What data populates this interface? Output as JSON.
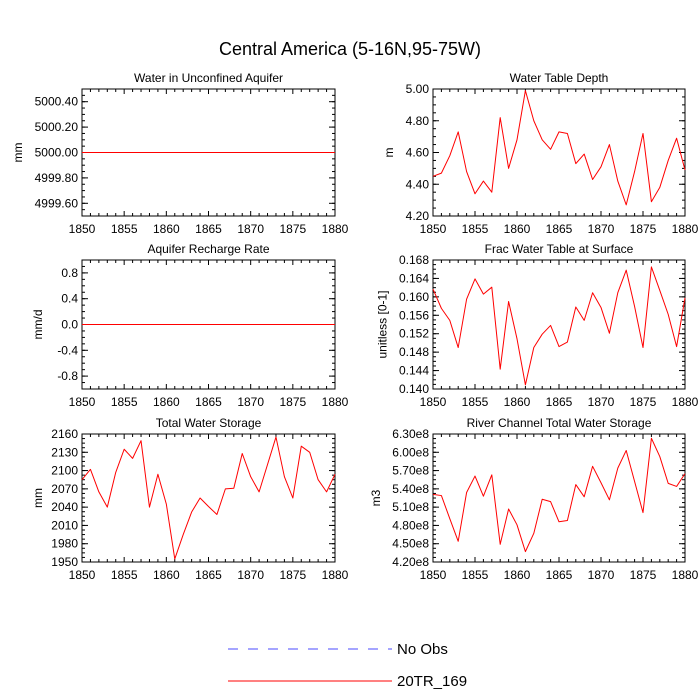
{
  "title": "Central America (5-16N,95-75W)",
  "colors": {
    "model": "#ff0000",
    "obs": "#4b4bff",
    "axis": "#000000"
  },
  "legend": [
    {
      "label": "No Obs",
      "style": "dashed",
      "color": "#4b4bff"
    },
    {
      "label": "20TR_169",
      "style": "solid",
      "color": "#ff0000"
    }
  ],
  "chart_data": [
    {
      "type": "line",
      "title": "Water in Unconfined Aquifer",
      "ylabel": "mm",
      "xlim": [
        1850,
        1880
      ],
      "ylim": [
        4999.5,
        5000.5
      ],
      "xticks": [
        1850,
        1855,
        1860,
        1865,
        1870,
        1875,
        1880
      ],
      "xtick_labels": [
        "1850",
        "1855",
        "1860",
        "1865",
        "1870",
        "1875",
        "1880"
      ],
      "yticks": [
        4999.6,
        4999.8,
        5000.0,
        5000.2,
        5000.4
      ],
      "ytick_labels": [
        "4999.60",
        "4999.80",
        "5000.00",
        "5000.20",
        "5000.40"
      ],
      "series": [
        {
          "name": "20TR_169",
          "x": [
            1850,
            1880
          ],
          "values": [
            5000.0,
            5000.0
          ]
        }
      ]
    },
    {
      "type": "line",
      "title": "Water Table Depth",
      "ylabel": "m",
      "xlim": [
        1850,
        1880
      ],
      "ylim": [
        4.2,
        5.0
      ],
      "xticks": [
        1850,
        1855,
        1860,
        1865,
        1870,
        1875,
        1880
      ],
      "xtick_labels": [
        "1850",
        "1855",
        "1860",
        "1865",
        "1870",
        "1875",
        "1880"
      ],
      "yticks": [
        4.2,
        4.4,
        4.6,
        4.8,
        5.0
      ],
      "ytick_labels": [
        "4.20",
        "4.40",
        "4.60",
        "4.80",
        "5.00"
      ],
      "series": [
        {
          "name": "20TR_169",
          "x_start": 1850,
          "x_step": 1,
          "values": [
            4.45,
            4.47,
            4.58,
            4.73,
            4.48,
            4.34,
            4.42,
            4.35,
            4.82,
            4.5,
            4.68,
            4.99,
            4.8,
            4.68,
            4.62,
            4.73,
            4.72,
            4.53,
            4.59,
            4.43,
            4.51,
            4.65,
            4.42,
            4.27,
            4.48,
            4.72,
            4.29,
            4.38,
            4.55,
            4.69,
            4.49
          ]
        }
      ]
    },
    {
      "type": "line",
      "title": "Aquifer Recharge Rate",
      "ylabel": "mm/d",
      "xlim": [
        1850,
        1880
      ],
      "ylim": [
        -1.0,
        1.0
      ],
      "xticks": [
        1850,
        1855,
        1860,
        1865,
        1870,
        1875,
        1880
      ],
      "xtick_labels": [
        "1850",
        "1855",
        "1860",
        "1865",
        "1870",
        "1875",
        "1880"
      ],
      "yticks": [
        -0.8,
        -0.4,
        0.0,
        0.4,
        0.8
      ],
      "ytick_labels": [
        "-0.8",
        "-0.4",
        "0.0",
        "0.4",
        "0.8"
      ],
      "series": [
        {
          "name": "20TR_169",
          "x": [
            1850,
            1880
          ],
          "values": [
            0.0,
            0.0
          ]
        }
      ]
    },
    {
      "type": "line",
      "title": "Frac Water Table at Surface",
      "ylabel": "unitless [0-1]",
      "xlim": [
        1850,
        1880
      ],
      "ylim": [
        0.14,
        0.168
      ],
      "xticks": [
        1850,
        1855,
        1860,
        1865,
        1870,
        1875,
        1880
      ],
      "xtick_labels": [
        "1850",
        "1855",
        "1860",
        "1865",
        "1870",
        "1875",
        "1880"
      ],
      "yticks": [
        0.14,
        0.144,
        0.148,
        0.152,
        0.156,
        0.16,
        0.164,
        0.168
      ],
      "ytick_labels": [
        "0.140",
        "0.144",
        "0.148",
        "0.152",
        "0.156",
        "0.160",
        "0.164",
        "0.168"
      ],
      "series": [
        {
          "name": "20TR_169",
          "x_start": 1850,
          "x_step": 1,
          "values": [
            0.1617,
            0.1575,
            0.1549,
            0.149,
            0.1595,
            0.1639,
            0.1606,
            0.1621,
            0.1443,
            0.159,
            0.1509,
            0.1409,
            0.149,
            0.1519,
            0.1538,
            0.1492,
            0.1502,
            0.1578,
            0.1549,
            0.1609,
            0.1577,
            0.1521,
            0.1609,
            0.1658,
            0.1579,
            0.149,
            0.1665,
            0.1614,
            0.1562,
            0.1492,
            0.1598
          ]
        }
      ]
    },
    {
      "type": "line",
      "title": "Total Water Storage",
      "ylabel": "mm",
      "xlim": [
        1850,
        1880
      ],
      "ylim": [
        1950,
        2160
      ],
      "xticks": [
        1850,
        1855,
        1860,
        1865,
        1870,
        1875,
        1880
      ],
      "xtick_labels": [
        "1850",
        "1855",
        "1860",
        "1865",
        "1870",
        "1875",
        "1880"
      ],
      "yticks": [
        1950,
        1980,
        2010,
        2040,
        2070,
        2100,
        2130,
        2160
      ],
      "ytick_labels": [
        "1950",
        "1980",
        "2010",
        "2040",
        "2070",
        "2100",
        "2130",
        "2160"
      ],
      "series": [
        {
          "name": "20TR_169",
          "x_start": 1850,
          "x_step": 1,
          "values": [
            2085,
            2102,
            2065,
            2040,
            2097,
            2135,
            2120,
            2149,
            2040,
            2094,
            2045,
            1955,
            1995,
            2032,
            2055,
            2041,
            2028,
            2070,
            2071,
            2128,
            2090,
            2065,
            2110,
            2155,
            2090,
            2055,
            2140,
            2130,
            2085,
            2065,
            2094
          ]
        }
      ]
    },
    {
      "type": "line",
      "title": "River Channel Total Water Storage",
      "ylabel": "m3",
      "xlim": [
        1850,
        1880
      ],
      "ylim": [
        420000000,
        630000000
      ],
      "xticks": [
        1850,
        1855,
        1860,
        1865,
        1870,
        1875,
        1880
      ],
      "xtick_labels": [
        "1850",
        "1855",
        "1860",
        "1865",
        "1870",
        "1875",
        "1880"
      ],
      "yticks": [
        420000000,
        450000000,
        480000000,
        510000000,
        540000000,
        570000000,
        600000000,
        630000000
      ],
      "ytick_labels": [
        "4.20e8",
        "4.50e8",
        "4.80e8",
        "5.10e8",
        "5.40e8",
        "5.70e8",
        "6.00e8",
        "6.30e8"
      ],
      "series": [
        {
          "name": "20TR_169",
          "x_start": 1850,
          "x_step": 1,
          "values": [
            531000000,
            529000000,
            491000000,
            454000000,
            534000000,
            561000000,
            528000000,
            563000000,
            449000000,
            507000000,
            481000000,
            437000000,
            467000000,
            523000000,
            519000000,
            486000000,
            488000000,
            547000000,
            527000000,
            577000000,
            550000000,
            522000000,
            574000000,
            603000000,
            552000000,
            501000000,
            623000000,
            593000000,
            549000000,
            544000000,
            565000000
          ]
        }
      ]
    }
  ]
}
